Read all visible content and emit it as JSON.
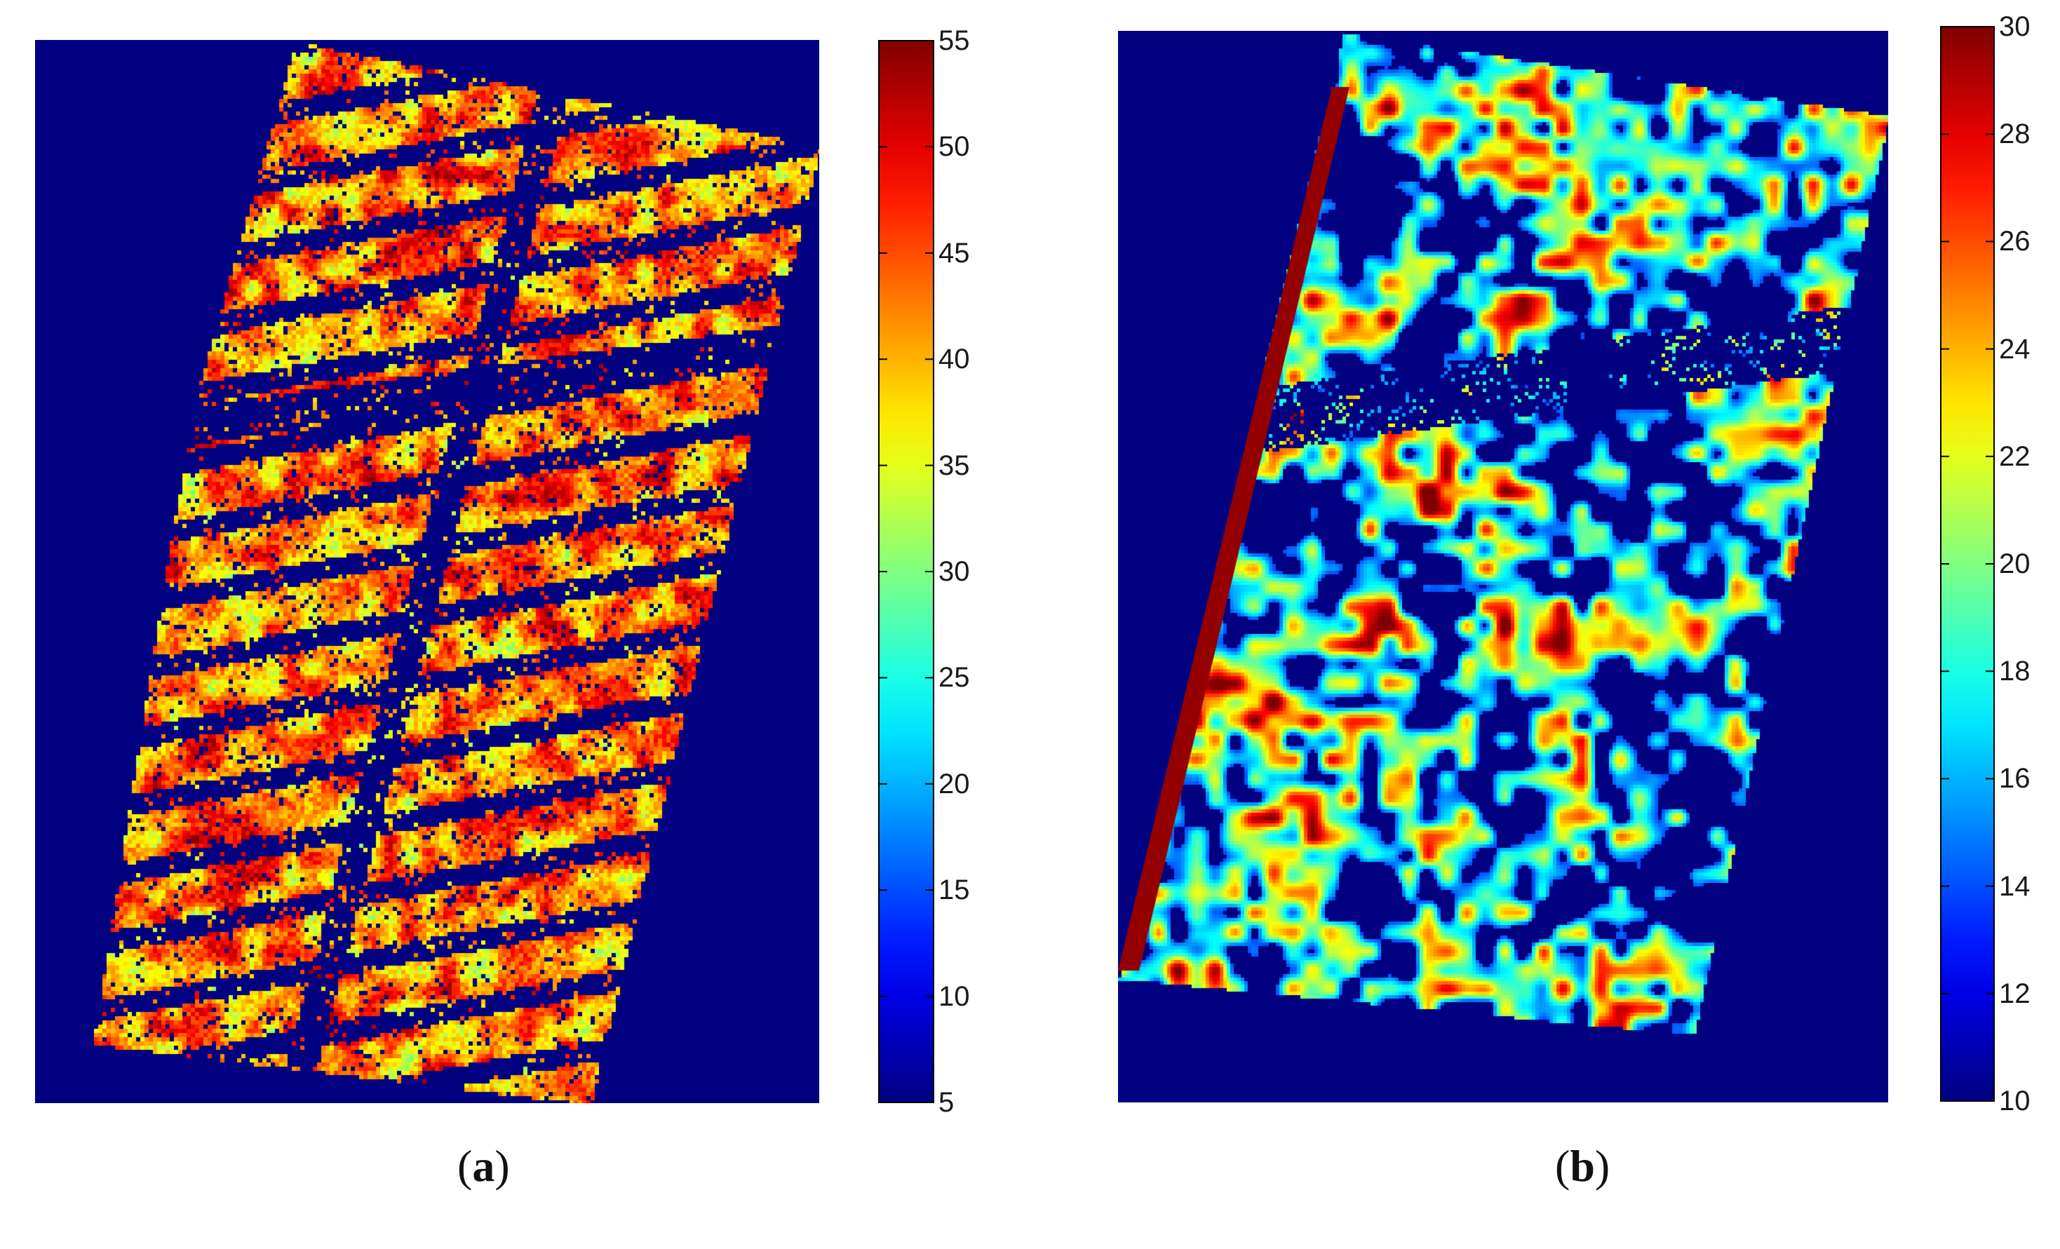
{
  "chart_data": [
    {
      "type": "heatmap",
      "caption_open": "(",
      "caption_letter": "a",
      "caption_close": ")",
      "colormap": "jet",
      "background_color": "#000080",
      "colorbar": {
        "placement": "right",
        "range": [
          5,
          55
        ],
        "ticks": [
          5,
          10,
          15,
          20,
          25,
          30,
          35,
          40,
          45,
          50,
          55
        ]
      }
    },
    {
      "type": "heatmap",
      "caption_open": "(",
      "caption_letter": "b",
      "caption_close": ")",
      "colormap": "jet",
      "background_color": "#000080",
      "colorbar": {
        "placement": "right",
        "range": [
          10,
          30
        ],
        "ticks": [
          10,
          12,
          14,
          16,
          18,
          20,
          22,
          24,
          26,
          28,
          30
        ]
      }
    }
  ]
}
